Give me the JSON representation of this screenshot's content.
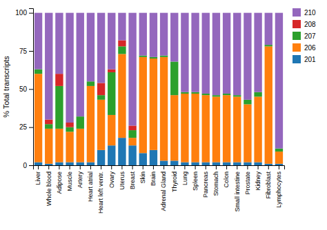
{
  "chart_data": {
    "type": "bar",
    "stacked": true,
    "ylabel": "% Total transcripts",
    "categories": [
      "Liver",
      "Whole blood",
      "Adipose",
      "Muscle",
      "Artery",
      "Heart atrial",
      "Heart left ventr.",
      "Ovary",
      "Uterus",
      "Breast",
      "Skin",
      "Brain",
      "Adrenal Gland",
      "Thyroid",
      "Lung",
      "Spleen",
      "Pancreas",
      "Stomach",
      "Colon",
      "Small intestine",
      "Prostate",
      "Kidney",
      "Fibroblast",
      "Lymphocytes"
    ],
    "series": [
      {
        "name": "201",
        "values": [
          2,
          1,
          2,
          2,
          2,
          2,
          10,
          13,
          18,
          13,
          8,
          10,
          3,
          3,
          2,
          2,
          2,
          2,
          2,
          2,
          2,
          2,
          1,
          1
        ]
      },
      {
        "name": "206",
        "values": [
          58,
          23,
          22,
          20,
          22,
          50,
          33,
          20,
          55,
          5,
          63,
          60,
          68,
          43,
          45,
          45,
          44,
          43,
          44,
          43,
          38,
          43,
          77,
          8
        ]
      },
      {
        "name": "207",
        "values": [
          3,
          3,
          28,
          3,
          8,
          3,
          3,
          28,
          5,
          5,
          1,
          1,
          1,
          22,
          1,
          1,
          1,
          1,
          1,
          1,
          3,
          3,
          1,
          2
        ]
      },
      {
        "name": "208",
        "values": [
          0,
          3,
          8,
          3,
          0,
          0,
          8,
          2,
          4,
          3,
          0,
          0,
          0,
          0,
          0,
          0,
          0,
          0,
          0,
          0,
          0,
          0,
          0,
          0
        ]
      },
      {
        "name": "210",
        "values": [
          37,
          70,
          40,
          72,
          68,
          45,
          46,
          37,
          18,
          74,
          28,
          29,
          28,
          32,
          52,
          52,
          53,
          54,
          53,
          54,
          57,
          52,
          21,
          89
        ]
      }
    ],
    "ylim": [
      0,
      103
    ],
    "yticks": [
      0,
      25,
      50,
      75,
      100
    ],
    "grid": false,
    "legend": "upper right"
  }
}
